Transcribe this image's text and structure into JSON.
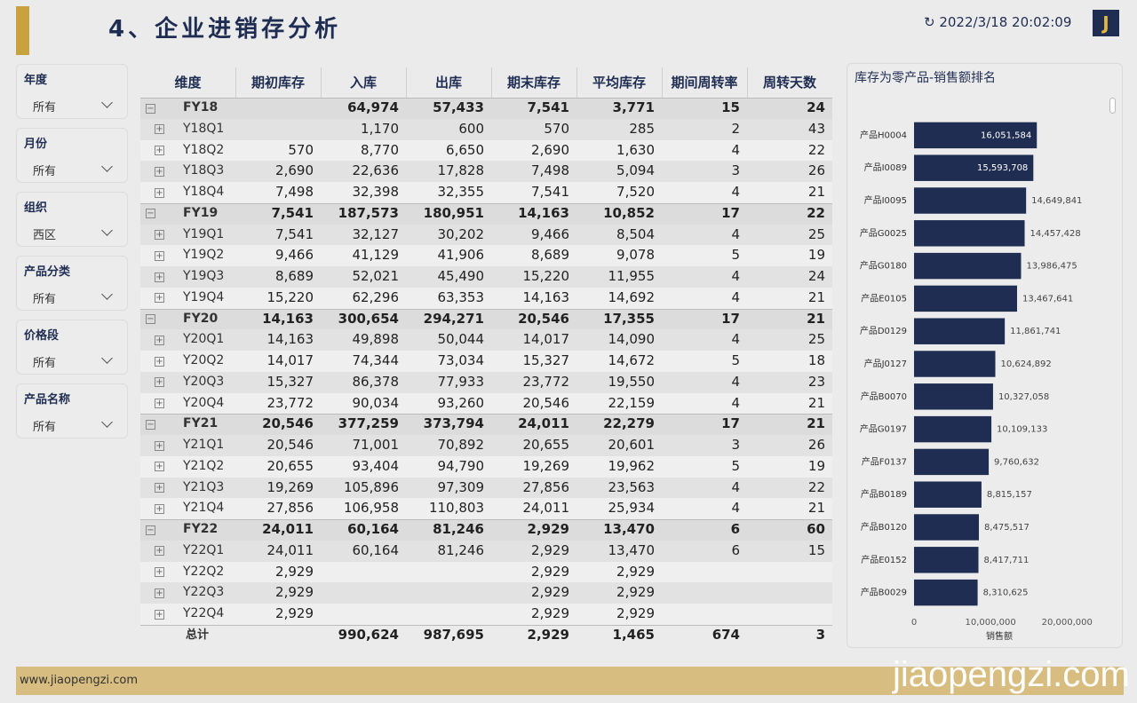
{
  "header": {
    "title": "4、企业进销存分析",
    "timestamp": "2022/3/18 20:02:09",
    "logo": "J"
  },
  "filters": [
    {
      "label": "年度",
      "value": "所有"
    },
    {
      "label": "月份",
      "value": "所有"
    },
    {
      "label": "组织",
      "value": "西区"
    },
    {
      "label": "产品分类",
      "value": "所有"
    },
    {
      "label": "价格段",
      "value": "所有"
    },
    {
      "label": "产品名称",
      "value": "所有"
    }
  ],
  "table": {
    "columns": [
      "维度",
      "期初库存",
      "入库",
      "出库",
      "期末库存",
      "平均库存",
      "期间周转率",
      "周转天数"
    ],
    "rows": [
      [
        "FY18",
        null,
        "64,974",
        "57,433",
        "7,541",
        "3,771",
        "15",
        "24"
      ],
      [
        "Y18Q1",
        null,
        "1,170",
        "600",
        "570",
        "285",
        "2",
        "43"
      ],
      [
        "Y18Q2",
        "570",
        "8,770",
        "6,650",
        "2,690",
        "1,630",
        "4",
        "22"
      ],
      [
        "Y18Q3",
        "2,690",
        "22,636",
        "17,828",
        "7,498",
        "5,094",
        "3",
        "26"
      ],
      [
        "Y18Q4",
        "7,498",
        "32,398",
        "32,355",
        "7,541",
        "7,520",
        "4",
        "21"
      ],
      [
        "FY19",
        "7,541",
        "187,573",
        "180,951",
        "14,163",
        "10,852",
        "17",
        "22"
      ],
      [
        "Y19Q1",
        "7,541",
        "32,127",
        "30,202",
        "9,466",
        "8,504",
        "4",
        "25"
      ],
      [
        "Y19Q2",
        "9,466",
        "41,129",
        "41,906",
        "8,689",
        "9,078",
        "5",
        "19"
      ],
      [
        "Y19Q3",
        "8,689",
        "52,021",
        "45,490",
        "15,220",
        "11,955",
        "4",
        "24"
      ],
      [
        "Y19Q4",
        "15,220",
        "62,296",
        "63,353",
        "14,163",
        "14,692",
        "4",
        "21"
      ],
      [
        "FY20",
        "14,163",
        "300,654",
        "294,271",
        "20,546",
        "17,355",
        "17",
        "21"
      ],
      [
        "Y20Q1",
        "14,163",
        "49,898",
        "50,044",
        "14,017",
        "14,090",
        "4",
        "25"
      ],
      [
        "Y20Q2",
        "14,017",
        "74,344",
        "73,034",
        "15,327",
        "14,672",
        "5",
        "18"
      ],
      [
        "Y20Q3",
        "15,327",
        "86,378",
        "77,933",
        "23,772",
        "19,550",
        "4",
        "23"
      ],
      [
        "Y20Q4",
        "23,772",
        "90,034",
        "93,260",
        "20,546",
        "22,159",
        "4",
        "21"
      ],
      [
        "FY21",
        "20,546",
        "377,259",
        "373,794",
        "24,011",
        "22,279",
        "17",
        "21"
      ],
      [
        "Y21Q1",
        "20,546",
        "71,001",
        "70,892",
        "20,655",
        "20,601",
        "3",
        "26"
      ],
      [
        "Y21Q2",
        "20,655",
        "93,404",
        "94,790",
        "19,269",
        "19,962",
        "5",
        "19"
      ],
      [
        "Y21Q3",
        "19,269",
        "105,896",
        "97,309",
        "27,856",
        "23,563",
        "4",
        "22"
      ],
      [
        "Y21Q4",
        "27,856",
        "106,958",
        "110,803",
        "24,011",
        "25,934",
        "4",
        "21"
      ],
      [
        "FY22",
        "24,011",
        "60,164",
        "81,246",
        "2,929",
        "13,470",
        "6",
        "60"
      ],
      [
        "Y22Q1",
        "24,011",
        "60,164",
        "81,246",
        "2,929",
        "13,470",
        "6",
        "15"
      ],
      [
        "Y22Q2",
        "2,929",
        null,
        null,
        "2,929",
        "2,929",
        null,
        null
      ],
      [
        "Y22Q3",
        "2,929",
        null,
        null,
        "2,929",
        "2,929",
        null,
        null
      ],
      [
        "Y22Q4",
        "2,929",
        null,
        null,
        "2,929",
        "2,929",
        null,
        null
      ],
      [
        "总计",
        null,
        "990,624",
        "987,695",
        "2,929",
        "1,465",
        "674",
        "3"
      ]
    ]
  },
  "chart_data": {
    "type": "hbar",
    "title": "库存为零产品-销售额排名",
    "x_label": "销售额",
    "color": "#1f2d52",
    "categories": [
      "产品H0004",
      "产品I0089",
      "产品I0095",
      "产品G0025",
      "产品G0180",
      "产品E0105",
      "产品D0129",
      "产品J0127",
      "产品B0070",
      "产品G0197",
      "产品F0137",
      "产品B0189",
      "产品B0120",
      "产品E0152",
      "产品B0029"
    ],
    "values": [
      16051584,
      15593708,
      14649841,
      14457428,
      13986475,
      13467641,
      11861741,
      10624892,
      10327058,
      10109133,
      9760632,
      8815157,
      8475517,
      8417711,
      8310625
    ],
    "value_labels": [
      "16,051,584",
      "15,593,708",
      "14,649,841",
      "14,457,428",
      "13,986,475",
      "13,467,641",
      "11,861,741",
      "10,624,892",
      "10,327,058",
      "10,109,133",
      "9,760,632",
      "8,815,157",
      "8,475,517",
      "8,417,711",
      "8,310,625"
    ],
    "xlim": [
      0,
      24500000
    ],
    "xticks": [
      0,
      {
        "value": 10000000,
        "label": "10,000,000"
      },
      {
        "value": 20000000,
        "label": "20,000,000"
      }
    ]
  },
  "footer": {
    "site": "www.jiaopengzi.com",
    "watermark": "jiaopengzi.com"
  }
}
